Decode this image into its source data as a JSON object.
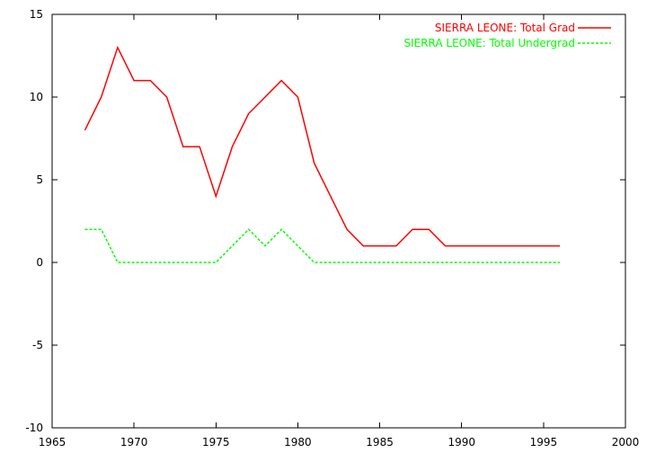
{
  "chart_data": {
    "type": "line",
    "title": "",
    "xlabel": "",
    "ylabel": "",
    "xlim": [
      1965,
      2000
    ],
    "ylim": [
      -10,
      15
    ],
    "x_ticks": [
      1965,
      1970,
      1975,
      1980,
      1985,
      1990,
      1995,
      2000
    ],
    "y_ticks": [
      -10,
      -5,
      0,
      5,
      10,
      15
    ],
    "x_tick_labels": [
      "1965",
      "1970",
      "1975",
      "1980",
      "1985",
      "1990",
      "1995",
      "2000"
    ],
    "y_tick_labels": [
      "-10",
      "-5",
      "0",
      "5",
      "10",
      "15"
    ],
    "grid": false,
    "legend_position": "top-right",
    "x": [
      1967,
      1968,
      1969,
      1970,
      1971,
      1972,
      1973,
      1974,
      1975,
      1976,
      1977,
      1978,
      1979,
      1980,
      1981,
      1982,
      1983,
      1984,
      1985,
      1986,
      1987,
      1988,
      1989,
      1990,
      1991,
      1992,
      1993,
      1994,
      1995,
      1996
    ],
    "series": [
      {
        "name": "SIERRA LEONE: Total Grad",
        "color": "#ff0000",
        "dash": "solid",
        "values": [
          8,
          10,
          13,
          11,
          11,
          10,
          7,
          7,
          4,
          7,
          9,
          10,
          11,
          10,
          6,
          4,
          2,
          1,
          1,
          1,
          2,
          2,
          1,
          1,
          1,
          1,
          1,
          1,
          1,
          1
        ]
      },
      {
        "name": "SIERRA LEONE: Total Undergrad",
        "color": "#00ff00",
        "dash": "dashed",
        "values": [
          2,
          2,
          0,
          0,
          0,
          0,
          0,
          0,
          0,
          1,
          2,
          1,
          2,
          1,
          0,
          0,
          0,
          0,
          0,
          0,
          0,
          0,
          0,
          0,
          0,
          0,
          0,
          0,
          0,
          0
        ]
      }
    ]
  }
}
